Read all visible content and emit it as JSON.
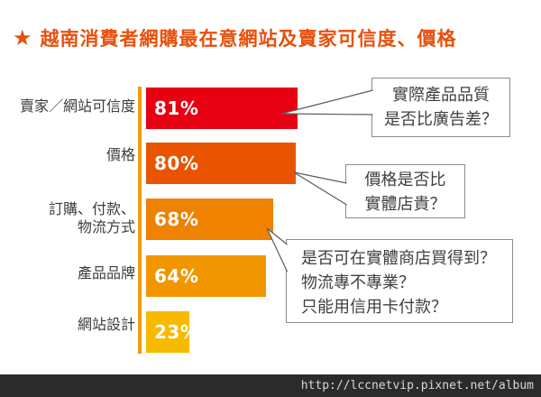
{
  "title": {
    "star": "★",
    "text": "越南消費者網購最在意網站及賣家可信度、價格",
    "color": "#e8500c"
  },
  "chart_data": {
    "type": "bar",
    "orientation": "horizontal",
    "title": "越南消費者網購最在意網站及賣家可信度、價格",
    "categories": [
      "賣家／網站可信度",
      "價格",
      "訂購、付款、物流方式",
      "產品品牌",
      "網站設計"
    ],
    "values": [
      81,
      80,
      68,
      64,
      23
    ],
    "xlim": [
      0,
      100
    ],
    "grid": false,
    "legend": false,
    "axis_color": "#f59a00",
    "rows": [
      {
        "label_lines": [
          "賣家／網站可信度"
        ],
        "value": 81,
        "pct": "81%",
        "color": "#e60012"
      },
      {
        "label_lines": [
          "價格"
        ],
        "value": 80,
        "pct": "80%",
        "color": "#e85400"
      },
      {
        "label_lines": [
          "訂購、付款、",
          "物流方式"
        ],
        "value": 68,
        "pct": "68%",
        "color": "#ef8200"
      },
      {
        "label_lines": [
          "產品品牌"
        ],
        "value": 64,
        "pct": "64%",
        "color": "#f29600"
      },
      {
        "label_lines": [
          "網站設計"
        ],
        "value": 23,
        "pct": "23%",
        "color": "#f8ba00"
      }
    ],
    "annotations": [
      {
        "target": "賣家／網站可信度",
        "lines": [
          "實際產品品質",
          "是否比廣告差？"
        ]
      },
      {
        "target": "價格",
        "lines": [
          "價格是否比",
          "實體店貴？"
        ]
      },
      {
        "target": "訂購、付款、物流方式",
        "lines": [
          "是否可在實體商店買得到？",
          "物流專不專業？",
          "只能用信用卡付款？"
        ]
      }
    ]
  },
  "callouts": [
    {
      "lines": [
        "實際產品品質",
        "是否比廣告差？"
      ]
    },
    {
      "lines": [
        "價格是否比",
        "實體店貴？"
      ]
    },
    {
      "lines": [
        "是否可在實體商店買得到？",
        "物流專不專業？",
        "只能用信用卡付款？"
      ]
    }
  ],
  "footer": {
    "url": "http://lccnetvip.pixnet.net/album",
    "bg": "#2b2b2b"
  }
}
